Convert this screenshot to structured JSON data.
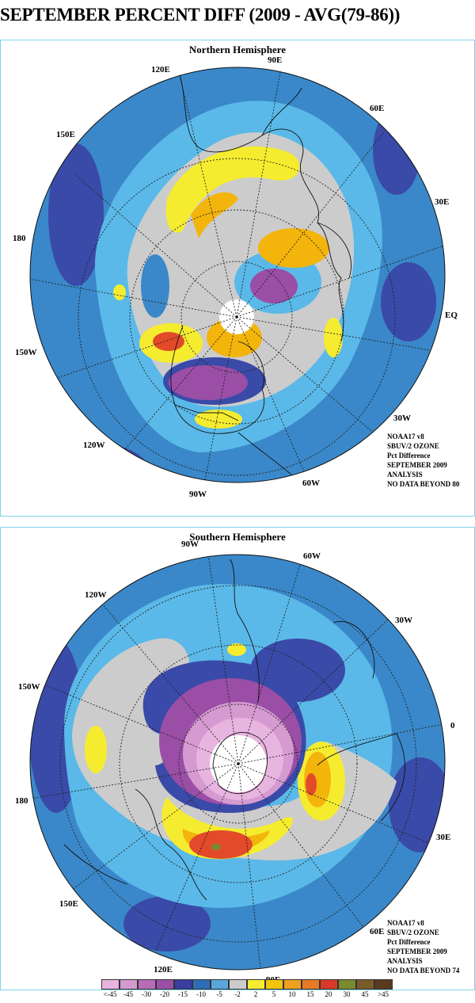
{
  "title": "SEPTEMBER PERCENT DIFF (2009 - AVG(79-86))",
  "north": {
    "title": "Northern Hemisphere",
    "lon_labels": [
      "90E",
      "60E",
      "30E",
      "EQ",
      "30W",
      "60W",
      "90W",
      "120W",
      "150W",
      "180",
      "150E",
      "120E"
    ],
    "info": [
      "NOAA17 v8",
      "SBUV/2 OZONE",
      "Pct Difference",
      "SEPTEMBER 2009",
      "ANALYSIS",
      "NO DATA BEYOND  80"
    ]
  },
  "south": {
    "title": "Southern Hemisphere",
    "lon_labels": [
      "90W",
      "60W",
      "30W",
      "0",
      "30E",
      "60E",
      "90E",
      "120E",
      "150E",
      "180",
      "150W",
      "120W"
    ],
    "info": [
      "NOAA17 v8",
      "SBUV/2 OZONE",
      "Pct Difference",
      "SEPTEMBER 2009",
      "ANALYSIS",
      "NO DATA BEYOND  74"
    ]
  },
  "legend": {
    "labels": [
      "<-45",
      "-45",
      "-30",
      "-20",
      "-15",
      "-10",
      "-5",
      "-2",
      "2",
      "5",
      "10",
      "15",
      "20",
      "30",
      "45",
      ">45"
    ],
    "colors": [
      "#e8b4e0",
      "#d59ad0",
      "#b96cb6",
      "#9a4ea6",
      "#3a3e9e",
      "#2e6cb6",
      "#5aa5d9",
      "#cccccc",
      "#f5ec2f",
      "#f3c40c",
      "#f0a020",
      "#e87a25",
      "#d83a2a",
      "#7a8a2e",
      "#7a5a2a",
      "#5a3a1e"
    ]
  },
  "colors": {
    "band_lt_blue": "#5ab9e8",
    "band_med_blue": "#3a88c9",
    "band_dark_blue": "#3a4aa8",
    "gray": "#cccccc",
    "yellow": "#f5ec2f",
    "orange": "#f3b40c",
    "red": "#e24a2a",
    "purple": "#9a4ea6",
    "pink": "#e0b0dc",
    "border": "#7fd3ea"
  }
}
